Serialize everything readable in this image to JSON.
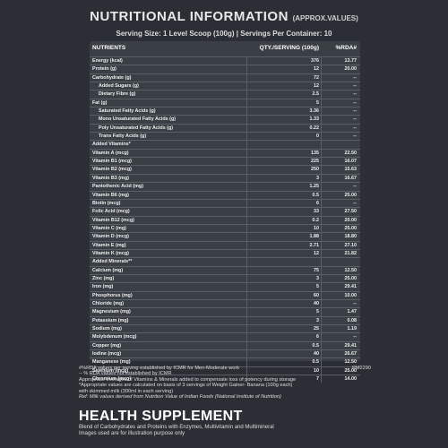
{
  "header": {
    "title": "NUTRITIONAL INFORMATION",
    "title_sub": "(APPROX.VALUES)",
    "serving": "Serving Size: 1 Level Scoop (100g)  |  Servings Per Container: 10"
  },
  "table": {
    "col_nutrients": "NUTRIENTS",
    "col_qty": "QTY./SERVING (100g)",
    "col_rda": "%RDA#",
    "rows": [
      {
        "name": "Energy (kcal)",
        "qty": "376",
        "rda": "13.77",
        "indent": false
      },
      {
        "name": "Protein (g)",
        "qty": "12",
        "rda": "20.00",
        "indent": false
      },
      {
        "name": "Carbohydrate (g)",
        "qty": "72",
        "rda": "--",
        "indent": false
      },
      {
        "name": "Added Sugars (g)",
        "qty": "12",
        "rda": "--",
        "indent": true
      },
      {
        "name": "Dietary Fibre (g)",
        "qty": "2.5",
        "rda": "--",
        "indent": true
      },
      {
        "name": "Fat (g)",
        "qty": "5",
        "rda": "--",
        "indent": false
      },
      {
        "name": "Saturated Fatty Acids (g)",
        "qty": "3.36",
        "rda": "--",
        "indent": true
      },
      {
        "name": "Mono Unsaturated Fatty Acids (g)",
        "qty": "1.33",
        "rda": "--",
        "indent": true
      },
      {
        "name": "Poly Unsaturated Fatty Acids (g)",
        "qty": "0.22",
        "rda": "--",
        "indent": true
      },
      {
        "name": "Trans Fatty Acids (g)",
        "qty": "0",
        "rda": "--",
        "indent": true
      },
      {
        "name": "Added Vitamins*",
        "qty": "",
        "rda": "",
        "indent": false
      },
      {
        "name": "Vitamin A (mcg)",
        "qty": "135",
        "rda": "22.50",
        "indent": false
      },
      {
        "name": "Vitamin B1 (mcg)",
        "qty": "225",
        "rda": "16.07",
        "indent": false
      },
      {
        "name": "Vitamin B2 (mcg)",
        "qty": "250",
        "rda": "15.63",
        "indent": false
      },
      {
        "name": "Vitamin B3 (mg)",
        "qty": "3",
        "rda": "16.67",
        "indent": false
      },
      {
        "name": "Pantothenic Acid (mg)",
        "qty": "1.25",
        "rda": "--",
        "indent": false
      },
      {
        "name": "Vitamin B6 (mg)",
        "qty": "0.5",
        "rda": "25.00",
        "indent": false
      },
      {
        "name": "Biotin (mcg)",
        "qty": "6",
        "rda": "--",
        "indent": false
      },
      {
        "name": "Folic Acid (mcg)",
        "qty": "33",
        "rda": "27.50",
        "indent": false
      },
      {
        "name": "Vitamin B12 (mcg)",
        "qty": "0.2",
        "rda": "20.00",
        "indent": false
      },
      {
        "name": "Vitamin C (mg)",
        "qty": "10",
        "rda": "25.00",
        "indent": false
      },
      {
        "name": "Vitamin D (mcg)",
        "qty": "1.88",
        "rda": "18.80",
        "indent": false
      },
      {
        "name": "Vitamin E (mg)",
        "qty": "2.71",
        "rda": "27.10",
        "indent": false
      },
      {
        "name": "Vitamin K (mcg)",
        "qty": "12",
        "rda": "21.82",
        "indent": false
      },
      {
        "name": "Added Minerals**",
        "qty": "",
        "rda": "",
        "indent": false
      },
      {
        "name": "Calcium (mg)",
        "qty": "75",
        "rda": "12.50",
        "indent": false
      },
      {
        "name": "Zinc (mg)",
        "qty": "3",
        "rda": "25.00",
        "indent": false
      },
      {
        "name": "Iron (mg)",
        "qty": "5",
        "rda": "29.41",
        "indent": false
      },
      {
        "name": "Phosphorus (mg)",
        "qty": "60",
        "rda": "10.00",
        "indent": false
      },
      {
        "name": "Chloride (mg)",
        "qty": "40",
        "rda": "--",
        "indent": false
      },
      {
        "name": "Magnesium (mg)",
        "qty": "5",
        "rda": "1.47",
        "indent": false
      },
      {
        "name": "Potassium (mg)",
        "qty": "3",
        "rda": "0.08",
        "indent": false
      },
      {
        "name": "Sodium (mg)",
        "qty": "25",
        "rda": "1.19",
        "indent": false
      },
      {
        "name": "Molybdenum (mcg)",
        "qty": "6",
        "rda": "--",
        "indent": false
      },
      {
        "name": "Copper (mg)",
        "qty": "0.5",
        "rda": "29.41",
        "indent": false
      },
      {
        "name": "Iodine (mcg)",
        "qty": "40",
        "rda": "26.67",
        "indent": false
      },
      {
        "name": "Manganese (mg)",
        "qty": "0.5",
        "rda": "12.50",
        "indent": false
      },
      {
        "name": "Selenium (mcg)",
        "qty": "10",
        "rda": "25.00",
        "indent": false
      },
      {
        "name": "Chromium (mcg)",
        "qty": "7",
        "rda": "14.00",
        "indent": false
      }
    ]
  },
  "footnotes": {
    "lines": [
      "#%RDA values per serving established by ICMR for Men-Moderate work",
      "-- % RDA values not established by ICMR",
      "Appropriate overages of Vitamins & Minerals added to compensate loss of potency during storage",
      "*Appropriate values are calculated on basis of 3 servings of Weight Gainer- Banana (100g each)",
      "with skimmed milk (300ml in each serving)"
    ],
    "ref": "Ref: Milk values derived from Nutrition Value of Indian Foods (National Institute of Nutrition)",
    "code": "PM2290"
  },
  "product": {
    "heading": "HEALTH SUPPLEMENT",
    "desc1": "Blend of Carbohydrates and Proteins with Enzymes, Multivitamin and Multimineral",
    "desc2": "Images used are for illustration purpose only"
  },
  "colors": {
    "background": "#2b2f35",
    "panel": "#3a3e45",
    "text": "#f2f2f2"
  }
}
